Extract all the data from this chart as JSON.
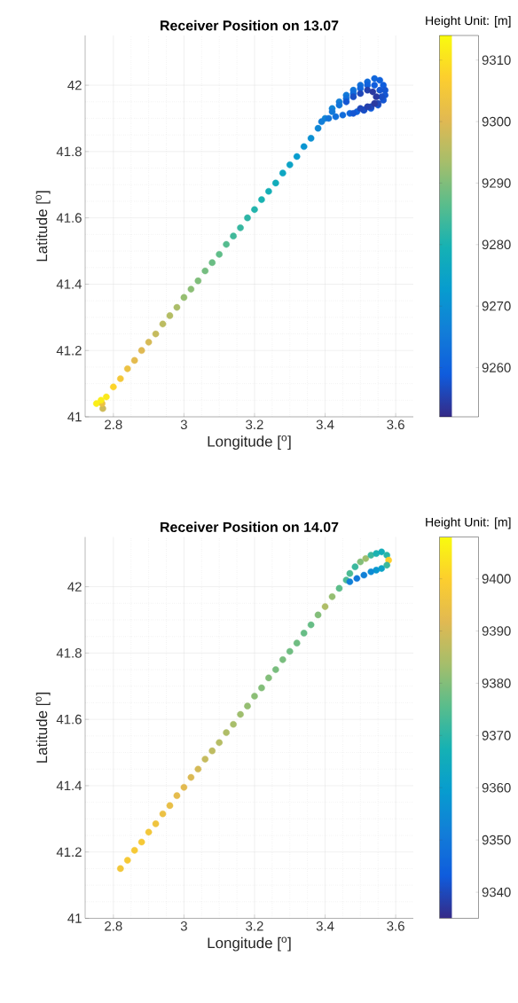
{
  "chart_data": [
    {
      "type": "scatter",
      "title": "Receiver Position on 13.07",
      "xlabel": "Longitude [$^{o}$]",
      "ylabel": "Latitude [$^{o}$]",
      "clabel": "Height Unit: [m]",
      "marker": "circle",
      "grid": true,
      "x": [
        2.77,
        2.768,
        2.752,
        2.765,
        2.78,
        2.8,
        2.82,
        2.84,
        2.86,
        2.88,
        2.9,
        2.92,
        2.94,
        2.96,
        2.98,
        3.0,
        3.02,
        3.04,
        3.06,
        3.08,
        3.1,
        3.12,
        3.14,
        3.16,
        3.18,
        3.2,
        3.22,
        3.24,
        3.26,
        3.28,
        3.3,
        3.32,
        3.34,
        3.36,
        3.38,
        3.4,
        3.42,
        3.44,
        3.46,
        3.48,
        3.5,
        3.52,
        3.54,
        3.555,
        3.565,
        3.57,
        3.57,
        3.565,
        3.55,
        3.53,
        3.51,
        3.49,
        3.47,
        3.45,
        3.43,
        3.41,
        3.39,
        3.42,
        3.44,
        3.46,
        3.48,
        3.5,
        3.52,
        3.54,
        3.555,
        3.56,
        3.55,
        3.53,
        3.51,
        3.48,
        3.46,
        3.48,
        3.5,
        3.52,
        3.535,
        3.545,
        3.54,
        3.52,
        3.5
      ],
      "values": [
        41.025,
        41.04,
        41.04,
        41.05,
        41.06,
        41.09,
        41.115,
        41.145,
        41.17,
        41.2,
        41.225,
        41.25,
        41.28,
        41.305,
        41.33,
        41.36,
        41.385,
        41.41,
        41.44,
        41.465,
        41.49,
        41.52,
        41.545,
        41.57,
        41.6,
        41.625,
        41.655,
        41.68,
        41.705,
        41.735,
        41.76,
        41.785,
        41.815,
        41.84,
        41.87,
        41.9,
        41.93,
        41.95,
        41.97,
        41.985,
        42.0,
        42.01,
        42.02,
        42.015,
        42.0,
        41.985,
        41.97,
        41.955,
        41.94,
        41.93,
        41.925,
        41.92,
        41.915,
        41.91,
        41.905,
        41.9,
        41.89,
        41.92,
        41.94,
        41.96,
        41.975,
        41.99,
        42.0,
        42.0,
        41.985,
        41.965,
        41.945,
        41.935,
        41.925,
        41.915,
        41.95,
        41.965,
        41.975,
        41.985,
        41.98,
        41.965,
        41.945,
        41.935,
        41.93
      ],
      "cvalues": [
        9298,
        9303,
        9312,
        9312,
        9311,
        9308,
        9305,
        9303,
        9301,
        9300,
        9299,
        9297,
        9296,
        9295,
        9294,
        9292,
        9291,
        9290,
        9289,
        9288,
        9287,
        9286,
        9284,
        9283,
        9282,
        9281,
        9280,
        9279,
        9278,
        9276,
        9275,
        9273,
        9271,
        9270,
        9268,
        9267,
        9267,
        9266,
        9265,
        9264,
        9263,
        9262,
        9261,
        9260,
        9259,
        9258,
        9258,
        9258,
        9258,
        9259,
        9259,
        9260,
        9261,
        9262,
        9263,
        9264,
        9266,
        9265,
        9264,
        9263,
        9262,
        9261,
        9260,
        9259,
        9258,
        9257,
        9256,
        9256,
        9257,
        9258,
        9258,
        9257,
        9256,
        9255,
        9254,
        9254,
        9254,
        9255,
        9256
      ],
      "xlim": [
        2.72,
        3.65
      ],
      "ylim": [
        41,
        42.15
      ],
      "xticks": [
        2.8,
        3,
        3.2,
        3.4,
        3.6
      ],
      "yticks": [
        41,
        41.2,
        41.4,
        41.6,
        41.8,
        42
      ],
      "clim": [
        9252,
        9314
      ],
      "cticks": [
        9260,
        9270,
        9280,
        9290,
        9300,
        9310
      ]
    },
    {
      "type": "scatter",
      "title": "Receiver Position on 14.07",
      "xlabel": "Longitude [$^{o}$]",
      "ylabel": "Latitude [$^{o}$]",
      "clabel": "Height Unit: [m]",
      "marker": "circle",
      "grid": true,
      "x": [
        2.82,
        2.84,
        2.86,
        2.88,
        2.9,
        2.92,
        2.94,
        2.96,
        2.98,
        3.0,
        3.02,
        3.04,
        3.06,
        3.08,
        3.1,
        3.12,
        3.14,
        3.16,
        3.18,
        3.2,
        3.22,
        3.24,
        3.26,
        3.28,
        3.3,
        3.32,
        3.34,
        3.36,
        3.38,
        3.4,
        3.42,
        3.44,
        3.46,
        3.47,
        3.485,
        3.5,
        3.515,
        3.53,
        3.545,
        3.56,
        3.575,
        3.58,
        3.575,
        3.56,
        3.545,
        3.53,
        3.51,
        3.49,
        3.47
      ],
      "values": [
        41.15,
        41.175,
        41.205,
        41.23,
        41.26,
        41.285,
        41.315,
        41.34,
        41.37,
        41.395,
        41.425,
        41.45,
        41.48,
        41.505,
        41.53,
        41.56,
        41.585,
        41.615,
        41.64,
        41.67,
        41.695,
        41.725,
        41.75,
        41.78,
        41.805,
        41.83,
        41.86,
        41.885,
        41.915,
        41.94,
        41.97,
        41.995,
        42.02,
        42.04,
        42.06,
        42.075,
        42.085,
        42.095,
        42.1,
        42.105,
        42.095,
        42.08,
        42.065,
        42.055,
        42.05,
        42.045,
        42.035,
        42.025,
        42.015
      ],
      "cvalues": [
        9397,
        9398,
        9398,
        9398,
        9397,
        9396,
        9395,
        9394,
        9393,
        9392,
        9391,
        9390,
        9388,
        9387,
        9386,
        9385,
        9384,
        9383,
        9382,
        9381,
        9380,
        9380,
        9379,
        9379,
        9378,
        9378,
        9377,
        9377,
        9380,
        9385,
        9382,
        9376,
        9374,
        9374,
        9372,
        9380,
        9383,
        9372,
        9368,
        9366,
        9370,
        9400,
        9372,
        9362,
        9358,
        9355,
        9352,
        9350,
        9352
      ],
      "xlim": [
        2.72,
        3.65
      ],
      "ylim": [
        41,
        42.15
      ],
      "xticks": [
        2.8,
        3,
        3.2,
        3.4,
        3.6
      ],
      "yticks": [
        41,
        41.2,
        41.4,
        41.6,
        41.8,
        42
      ],
      "clim": [
        9335,
        9408
      ],
      "cticks": [
        9340,
        9350,
        9360,
        9370,
        9380,
        9390,
        9400
      ]
    }
  ]
}
